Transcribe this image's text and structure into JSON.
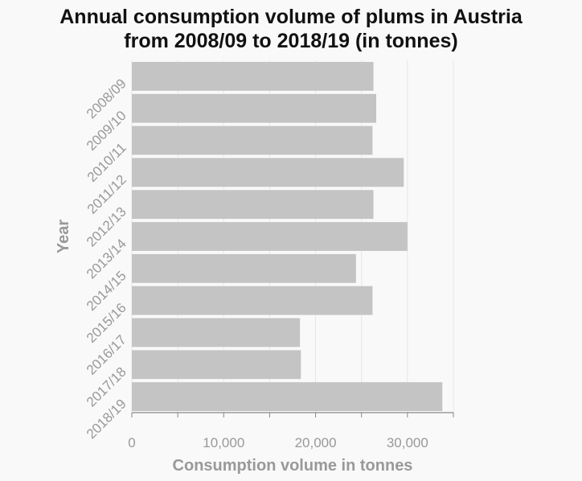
{
  "chart_data": {
    "type": "bar",
    "orientation": "horizontal",
    "title_lines": [
      "Annual consumption volume of plums in Austria",
      "from 2008/09 to 2018/19 (in tonnes)"
    ],
    "xlabel": "Consumption volume in tonnes",
    "ylabel": "Year",
    "categories": [
      "2008/09",
      "2009/10",
      "2010/11",
      "2011/12",
      "2012/13",
      "2013/14",
      "2014/15",
      "2015/16",
      "2016/17",
      "2017/18",
      "2018/19"
    ],
    "values": [
      26300,
      26600,
      26200,
      29600,
      26300,
      30000,
      24400,
      26200,
      18300,
      18400,
      33800
    ],
    "xlim": [
      0,
      35000
    ],
    "xticks": [
      0,
      10000,
      20000,
      30000
    ],
    "xtick_labels": [
      "0",
      "10,000",
      "20,000",
      "30,000"
    ],
    "grid": "vertical",
    "colors": {
      "bar": "#c4c4c4",
      "background": "#f9f9f9",
      "grid": "#e6e6e6",
      "axis_text": "#999999",
      "title": "#111111"
    }
  }
}
